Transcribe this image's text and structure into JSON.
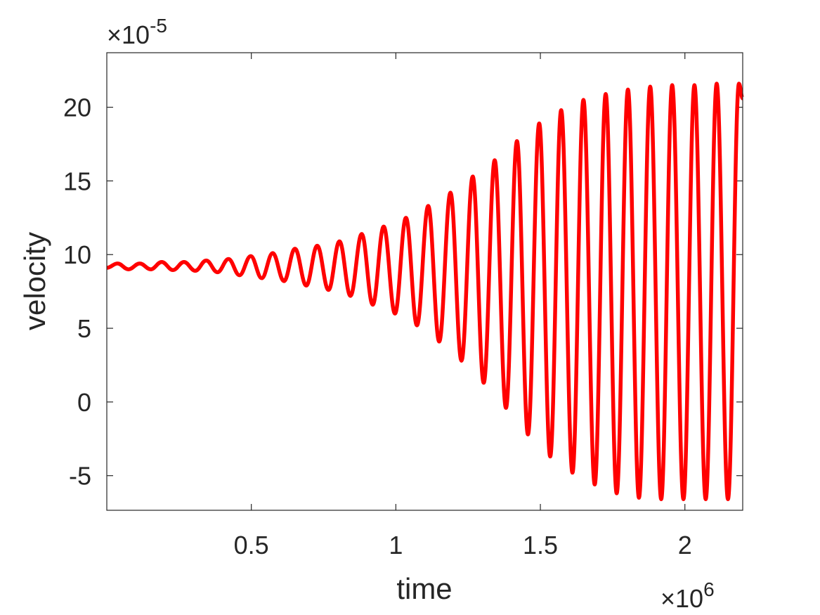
{
  "chart_data": {
    "type": "line",
    "xlabel": "time",
    "ylabel": "velocity",
    "x_exponent": {
      "base": "×10",
      "power": "6"
    },
    "y_exponent": {
      "base": "×10",
      "power": "-5"
    },
    "color": "#ff0000",
    "x": [
      0,
      0.037,
      0.075,
      0.114,
      0.152,
      0.19,
      0.229,
      0.267,
      0.306,
      0.344,
      0.383,
      0.421,
      0.459,
      0.498,
      0.536,
      0.574,
      0.613,
      0.651,
      0.69,
      0.728,
      0.767,
      0.805,
      0.843,
      0.882,
      0.92,
      0.958,
      0.997,
      1.035,
      1.073,
      1.112,
      1.15,
      1.189,
      1.227,
      1.266,
      1.304,
      1.342,
      1.381,
      1.419,
      1.457,
      1.496,
      1.534,
      1.572,
      1.611,
      1.649,
      1.688,
      1.726,
      1.764,
      1.803,
      1.841,
      1.88,
      1.918,
      1.956,
      1.995,
      2.033,
      2.072,
      2.11,
      2.149,
      2.187,
      2.2
    ],
    "values": [
      9.1,
      9.4,
      9.0,
      9.4,
      9.0,
      9.5,
      8.95,
      9.5,
      8.9,
      9.6,
      8.8,
      9.7,
      8.6,
      9.9,
      8.4,
      10.1,
      8.2,
      10.4,
      7.9,
      10.6,
      7.6,
      10.9,
      7.2,
      11.4,
      6.6,
      11.9,
      6.0,
      12.5,
      5.2,
      13.3,
      4.1,
      14.2,
      2.8,
      15.3,
      1.3,
      16.4,
      -0.4,
      17.7,
      -2.2,
      18.9,
      -3.7,
      19.8,
      -4.8,
      20.5,
      -5.6,
      20.9,
      -6.2,
      21.2,
      -6.5,
      21.4,
      -6.6,
      21.5,
      -6.6,
      21.5,
      -6.6,
      21.6,
      -6.6,
      21.6,
      20.6
    ],
    "xlim": [
      0,
      2.2
    ],
    "xticks": [
      0.5,
      1,
      1.5,
      2
    ],
    "ylim": [
      -7.35,
      23.7
    ],
    "yticks": [
      -5,
      0,
      5,
      10,
      15,
      20
    ],
    "grid": false
  }
}
